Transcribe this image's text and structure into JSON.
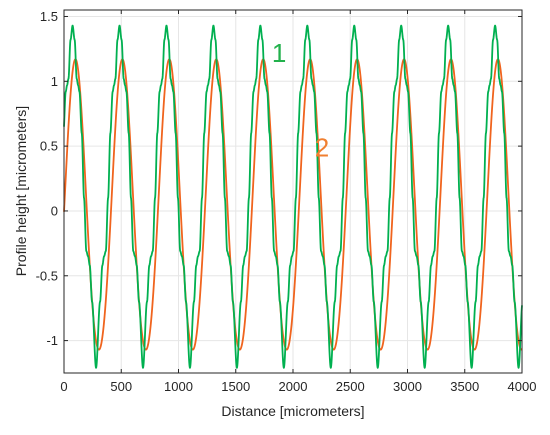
{
  "chart_data": {
    "type": "line",
    "xlabel": "Distance [micrometers]",
    "ylabel": "Profile height [micrometers]",
    "xlim": [
      0,
      4000
    ],
    "ylim": [
      -1.25,
      1.55
    ],
    "x_ticks": [
      "0",
      "500",
      "1000",
      "1500",
      "2000",
      "2500",
      "3000",
      "3500",
      "4000"
    ],
    "y_ticks": [
      "-1",
      "-0.5",
      "0",
      "0.5",
      "1",
      "1.5"
    ],
    "grid": true,
    "series": [
      {
        "name": "1",
        "color": "#00b050",
        "period": 410,
        "peak_x": [
          75,
          485,
          895,
          1305,
          1715,
          2125,
          2535,
          2945,
          3355,
          3765
        ],
        "peak_y": 1.43,
        "trough_x": [
          280,
          690,
          1100,
          1510,
          1920,
          2330,
          2740,
          3150,
          3560,
          3970
        ],
        "trough_y": -1.21,
        "shoulder_y": [
          0.97,
          -0.32
        ]
      },
      {
        "name": "2",
        "color": "#f0641e",
        "period": 410,
        "peak_x": [
          100,
          510,
          920,
          1330,
          1740,
          2150,
          2560,
          2970,
          3380,
          3790
        ],
        "peak_y": 1.12,
        "trough_x": [
          305,
          715,
          1125,
          1535,
          1945,
          2355,
          2765,
          3175,
          3585,
          3995
        ],
        "trough_y": -1.12
      }
    ],
    "annotations": [
      {
        "text": "1",
        "x": 1815,
        "y": 1.15,
        "color": "#22b14c"
      },
      {
        "text": "2",
        "x": 2190,
        "y": 0.42,
        "color": "#f07f30"
      }
    ]
  }
}
